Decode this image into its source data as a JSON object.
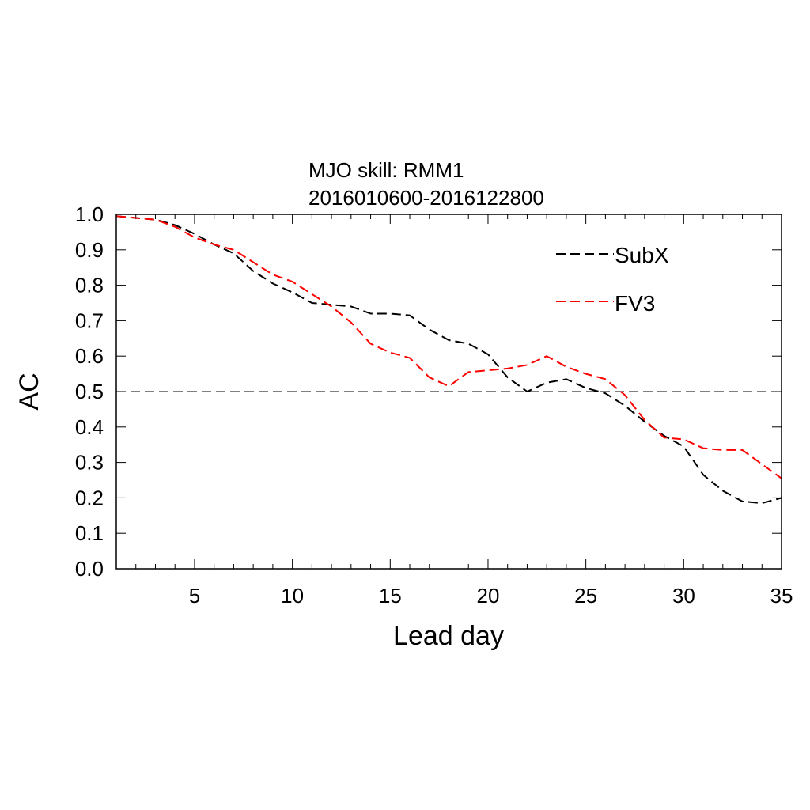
{
  "chart_data": {
    "type": "line",
    "title_line1": "MJO skill: RMM1",
    "title_line2": "2016010600-2016122800",
    "xlabel": "Lead day",
    "ylabel": "AC",
    "xlim": [
      1,
      35
    ],
    "ylim": [
      0,
      1
    ],
    "xticks": [
      5,
      10,
      15,
      20,
      25,
      30,
      35
    ],
    "yticks": [
      "0.0",
      "0.1",
      "0.2",
      "0.3",
      "0.4",
      "0.5",
      "0.6",
      "0.7",
      "0.8",
      "0.9",
      "1.0"
    ],
    "reference_line": 0.5,
    "legend_placement": "top-right",
    "x": [
      1,
      2,
      3,
      4,
      5,
      6,
      7,
      8,
      9,
      10,
      11,
      12,
      13,
      14,
      15,
      16,
      17,
      18,
      19,
      20,
      21,
      22,
      23,
      24,
      25,
      26,
      27,
      28,
      29,
      30,
      31,
      32,
      33,
      34,
      35
    ],
    "series": [
      {
        "name": "SubX",
        "color": "#000000",
        "values": [
          0.995,
          0.99,
          0.985,
          0.97,
          0.945,
          0.915,
          0.89,
          0.84,
          0.805,
          0.78,
          0.75,
          0.745,
          0.74,
          0.72,
          0.72,
          0.715,
          0.675,
          0.645,
          0.635,
          0.605,
          0.54,
          0.5,
          0.525,
          0.535,
          0.51,
          0.495,
          0.46,
          0.415,
          0.375,
          0.345,
          0.265,
          0.22,
          0.19,
          0.185,
          0.2
        ]
      },
      {
        "name": "FV3",
        "color": "#ff0000",
        "values": [
          0.995,
          0.99,
          0.985,
          0.965,
          0.935,
          0.915,
          0.9,
          0.865,
          0.83,
          0.81,
          0.775,
          0.74,
          0.695,
          0.635,
          0.61,
          0.595,
          0.54,
          0.515,
          0.555,
          0.56,
          0.565,
          0.575,
          0.6,
          0.57,
          0.55,
          0.535,
          0.49,
          0.42,
          0.37,
          0.365,
          0.34,
          0.335,
          0.335,
          0.295,
          0.255
        ]
      }
    ]
  }
}
